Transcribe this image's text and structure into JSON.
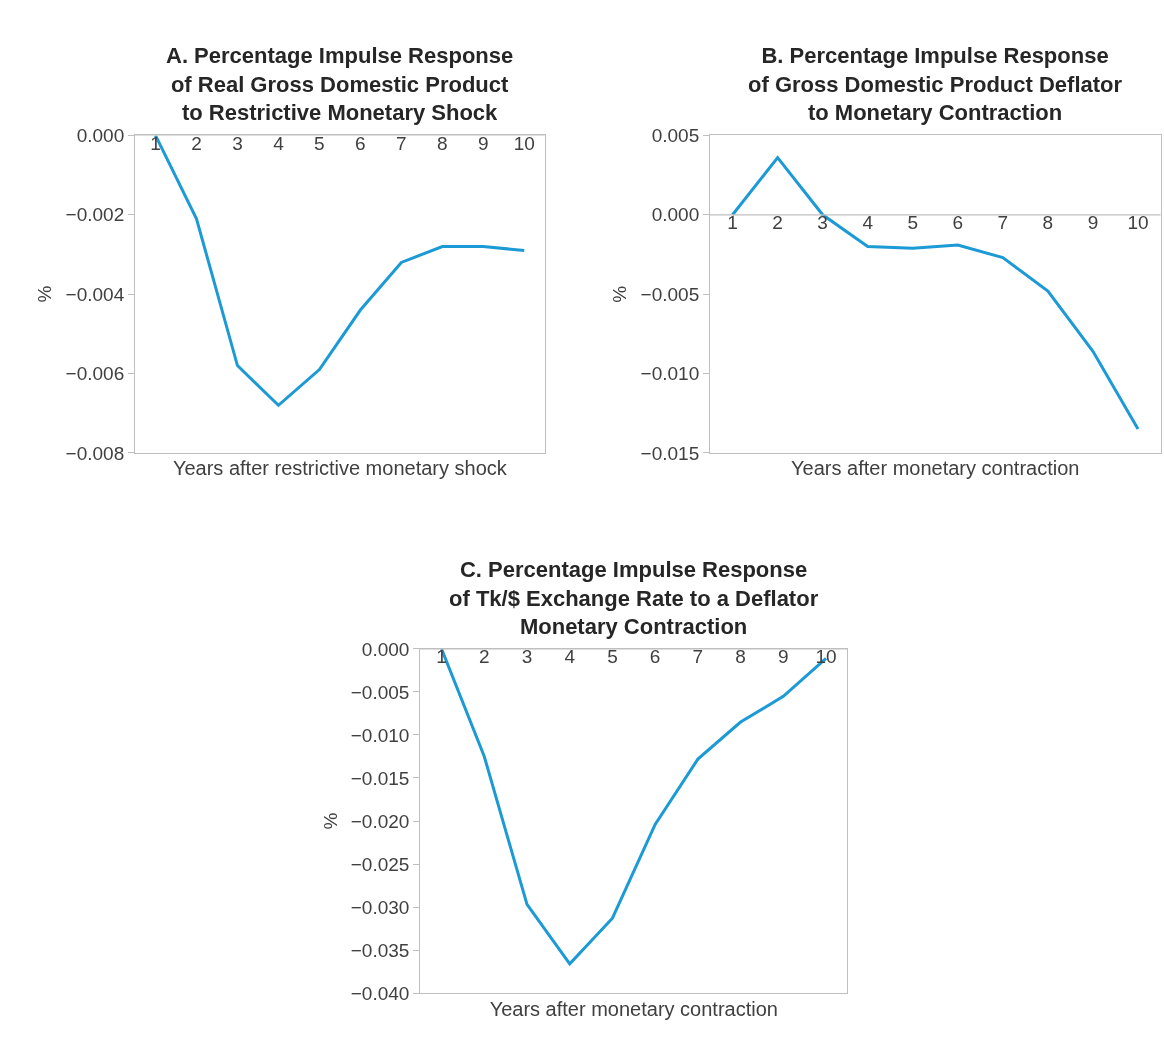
{
  "chart_data": [
    {
      "type": "line",
      "title": "A. Percentage Impulse Response\nof Real Gross Domestic Product\nto Restrictive Monetary Shock",
      "xlabel": "Years after restrictive monetary shock",
      "ylabel": "%",
      "categories": [
        "1",
        "2",
        "3",
        "4",
        "5",
        "6",
        "7",
        "8",
        "9",
        "10"
      ],
      "series": [
        {
          "color": "#1b9ad6",
          "values": [
            0.0,
            -0.0021,
            -0.0058,
            -0.0068,
            -0.0059,
            -0.0044,
            -0.0032,
            -0.0028,
            -0.0028,
            -0.0029
          ]
        }
      ],
      "ylim": [
        -0.008,
        0.0
      ],
      "yticks": [
        {
          "value": 0,
          "label": "0.000"
        },
        {
          "value": -0.002,
          "label": "−0.002"
        },
        {
          "value": -0.004,
          "label": "−0.004"
        },
        {
          "value": -0.006,
          "label": "−0.006"
        },
        {
          "value": -0.008,
          "label": "−0.008"
        }
      ]
    },
    {
      "type": "line",
      "title": "B. Percentage Impulse Response\nof Gross Domestic Product Deflator\nto Monetary Contraction",
      "xlabel": "Years after monetary contraction",
      "ylabel": "%",
      "categories": [
        "1",
        "2",
        "3",
        "4",
        "5",
        "6",
        "7",
        "8",
        "9",
        "10"
      ],
      "series": [
        {
          "color": "#1b9ad6",
          "values": [
            0.0,
            0.0036,
            0.0,
            -0.002,
            -0.0021,
            -0.0019,
            -0.0027,
            -0.0048,
            -0.0086,
            -0.0135
          ]
        }
      ],
      "ylim": [
        -0.015,
        0.005
      ],
      "yticks": [
        {
          "value": 0.005,
          "label": "0.005"
        },
        {
          "value": 0,
          "label": "0.000"
        },
        {
          "value": -0.005,
          "label": "−0.005"
        },
        {
          "value": -0.01,
          "label": "−0.010"
        },
        {
          "value": -0.015,
          "label": "−0.015"
        }
      ]
    },
    {
      "type": "line",
      "title": "C. Percentage Impulse Response\nof Tk/$ Exchange Rate to a Deflator\nMonetary Contraction",
      "xlabel": "Years after monetary contraction",
      "ylabel": "%",
      "categories": [
        "1",
        "2",
        "3",
        "4",
        "5",
        "6",
        "7",
        "8",
        "9",
        "10"
      ],
      "series": [
        {
          "color": "#1b9ad6",
          "values": [
            0.0,
            -0.0125,
            -0.0297,
            -0.0366,
            -0.0313,
            -0.0204,
            -0.0128,
            -0.0085,
            -0.0055,
            -0.0011
          ]
        }
      ],
      "ylim": [
        -0.04,
        0.0
      ],
      "yticks": [
        {
          "value": 0,
          "label": "0.000"
        },
        {
          "value": -0.005,
          "label": "−0.005"
        },
        {
          "value": -0.01,
          "label": "−0.010"
        },
        {
          "value": -0.015,
          "label": "−0.015"
        },
        {
          "value": -0.02,
          "label": "−0.020"
        },
        {
          "value": -0.025,
          "label": "−0.025"
        },
        {
          "value": -0.03,
          "label": "−0.030"
        },
        {
          "value": -0.035,
          "label": "−0.035"
        },
        {
          "value": -0.04,
          "label": "−0.040"
        }
      ]
    }
  ]
}
